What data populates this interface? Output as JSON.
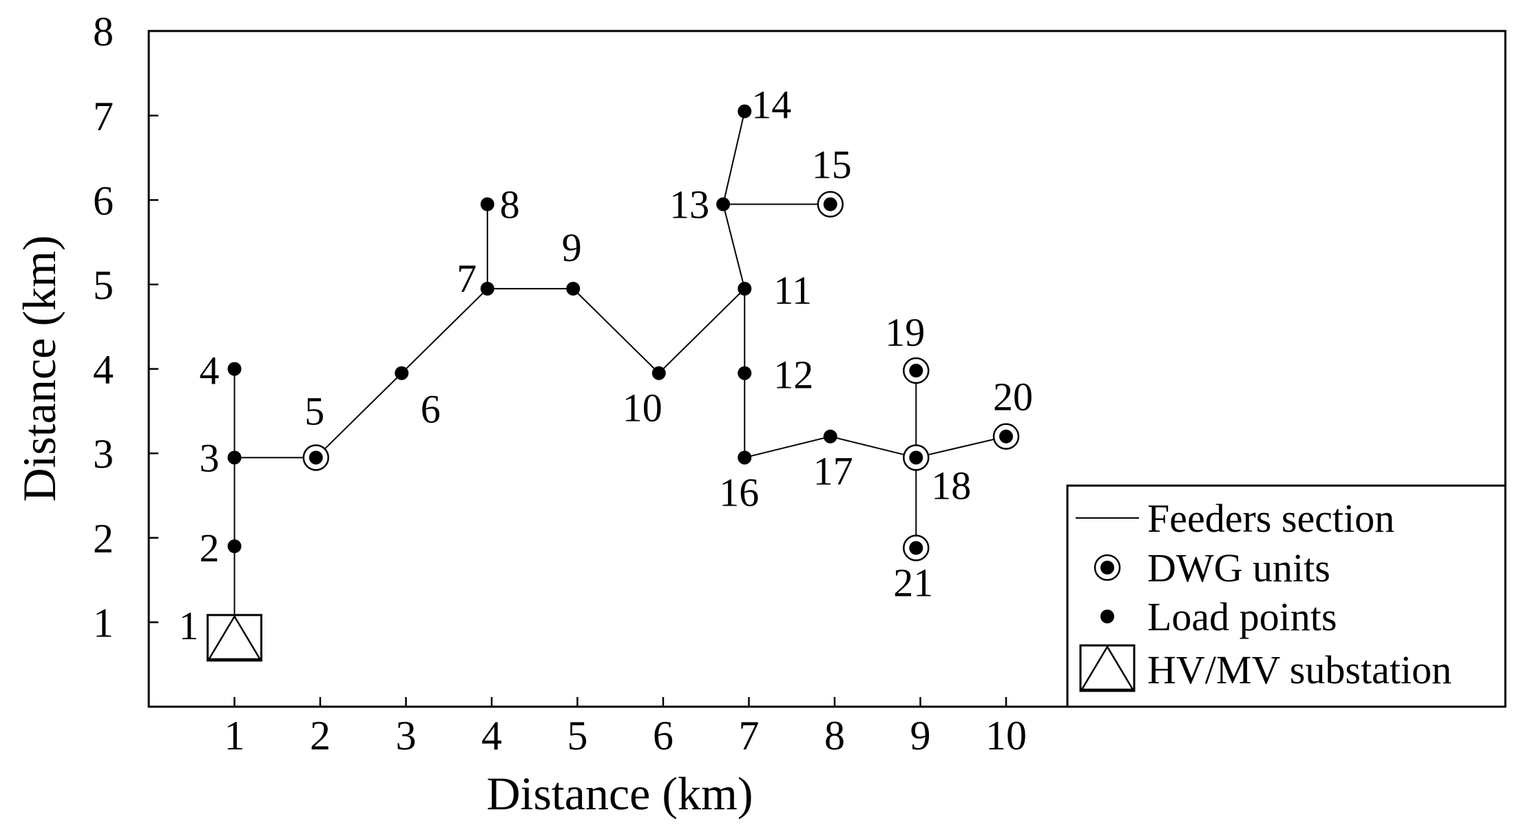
{
  "chart_data": {
    "type": "scatter",
    "title": "",
    "xlabel": "Distance (km)",
    "ylabel": "Distance (km)",
    "xlim": [
      0,
      13.7
    ],
    "ylim": [
      0,
      8
    ],
    "xticks": [
      "1",
      "2",
      "3",
      "4",
      "5",
      "6",
      "7",
      "8",
      "9",
      "10"
    ],
    "yticks": [
      "1",
      "2",
      "3",
      "4",
      "5",
      "6",
      "7",
      "8"
    ],
    "grid": false,
    "legend": {
      "placement": "bottom-right",
      "items": [
        {
          "symbol": "line",
          "label": "Feeders section"
        },
        {
          "symbol": "dwg",
          "label": "DWG units"
        },
        {
          "symbol": "dot",
          "label": "Load points"
        },
        {
          "symbol": "substation",
          "label": "HV/MV substation"
        }
      ]
    },
    "nodes": [
      {
        "id": "1",
        "x": 1.0,
        "y": 0.8,
        "type": "substation"
      },
      {
        "id": "2",
        "x": 1.0,
        "y": 1.9,
        "type": "load"
      },
      {
        "id": "3",
        "x": 1.0,
        "y": 2.95,
        "type": "load"
      },
      {
        "id": "4",
        "x": 1.0,
        "y": 4.0,
        "type": "load"
      },
      {
        "id": "5",
        "x": 1.95,
        "y": 2.95,
        "type": "dwg"
      },
      {
        "id": "6",
        "x": 2.95,
        "y": 3.95,
        "type": "load"
      },
      {
        "id": "7",
        "x": 3.95,
        "y": 4.95,
        "type": "load"
      },
      {
        "id": "8",
        "x": 3.95,
        "y": 5.95,
        "type": "load"
      },
      {
        "id": "9",
        "x": 4.95,
        "y": 4.95,
        "type": "load"
      },
      {
        "id": "10",
        "x": 5.95,
        "y": 3.95,
        "type": "load"
      },
      {
        "id": "11",
        "x": 6.95,
        "y": 4.95,
        "type": "load"
      },
      {
        "id": "12",
        "x": 6.95,
        "y": 3.95,
        "type": "load"
      },
      {
        "id": "13",
        "x": 6.7,
        "y": 5.95,
        "type": "load"
      },
      {
        "id": "14",
        "x": 6.95,
        "y": 7.05,
        "type": "load"
      },
      {
        "id": "15",
        "x": 7.95,
        "y": 5.95,
        "type": "dwg"
      },
      {
        "id": "16",
        "x": 6.95,
        "y": 2.95,
        "type": "load"
      },
      {
        "id": "17",
        "x": 7.95,
        "y": 3.2,
        "type": "load"
      },
      {
        "id": "18",
        "x": 8.95,
        "y": 2.95,
        "type": "dwg"
      },
      {
        "id": "19",
        "x": 8.95,
        "y": 3.98,
        "type": "dwg"
      },
      {
        "id": "20",
        "x": 10.0,
        "y": 3.2,
        "type": "dwg"
      },
      {
        "id": "21",
        "x": 8.95,
        "y": 1.88,
        "type": "dwg"
      }
    ],
    "edges": [
      [
        "1",
        "2"
      ],
      [
        "2",
        "3"
      ],
      [
        "3",
        "4"
      ],
      [
        "3",
        "5"
      ],
      [
        "5",
        "6"
      ],
      [
        "6",
        "7"
      ],
      [
        "7",
        "8"
      ],
      [
        "7",
        "9"
      ],
      [
        "9",
        "10"
      ],
      [
        "10",
        "11"
      ],
      [
        "11",
        "13"
      ],
      [
        "13",
        "14"
      ],
      [
        "13",
        "15"
      ],
      [
        "11",
        "12"
      ],
      [
        "12",
        "16"
      ],
      [
        "16",
        "17"
      ],
      [
        "17",
        "18"
      ],
      [
        "18",
        "20"
      ],
      [
        "18",
        "19"
      ],
      [
        "18",
        "21"
      ]
    ]
  }
}
